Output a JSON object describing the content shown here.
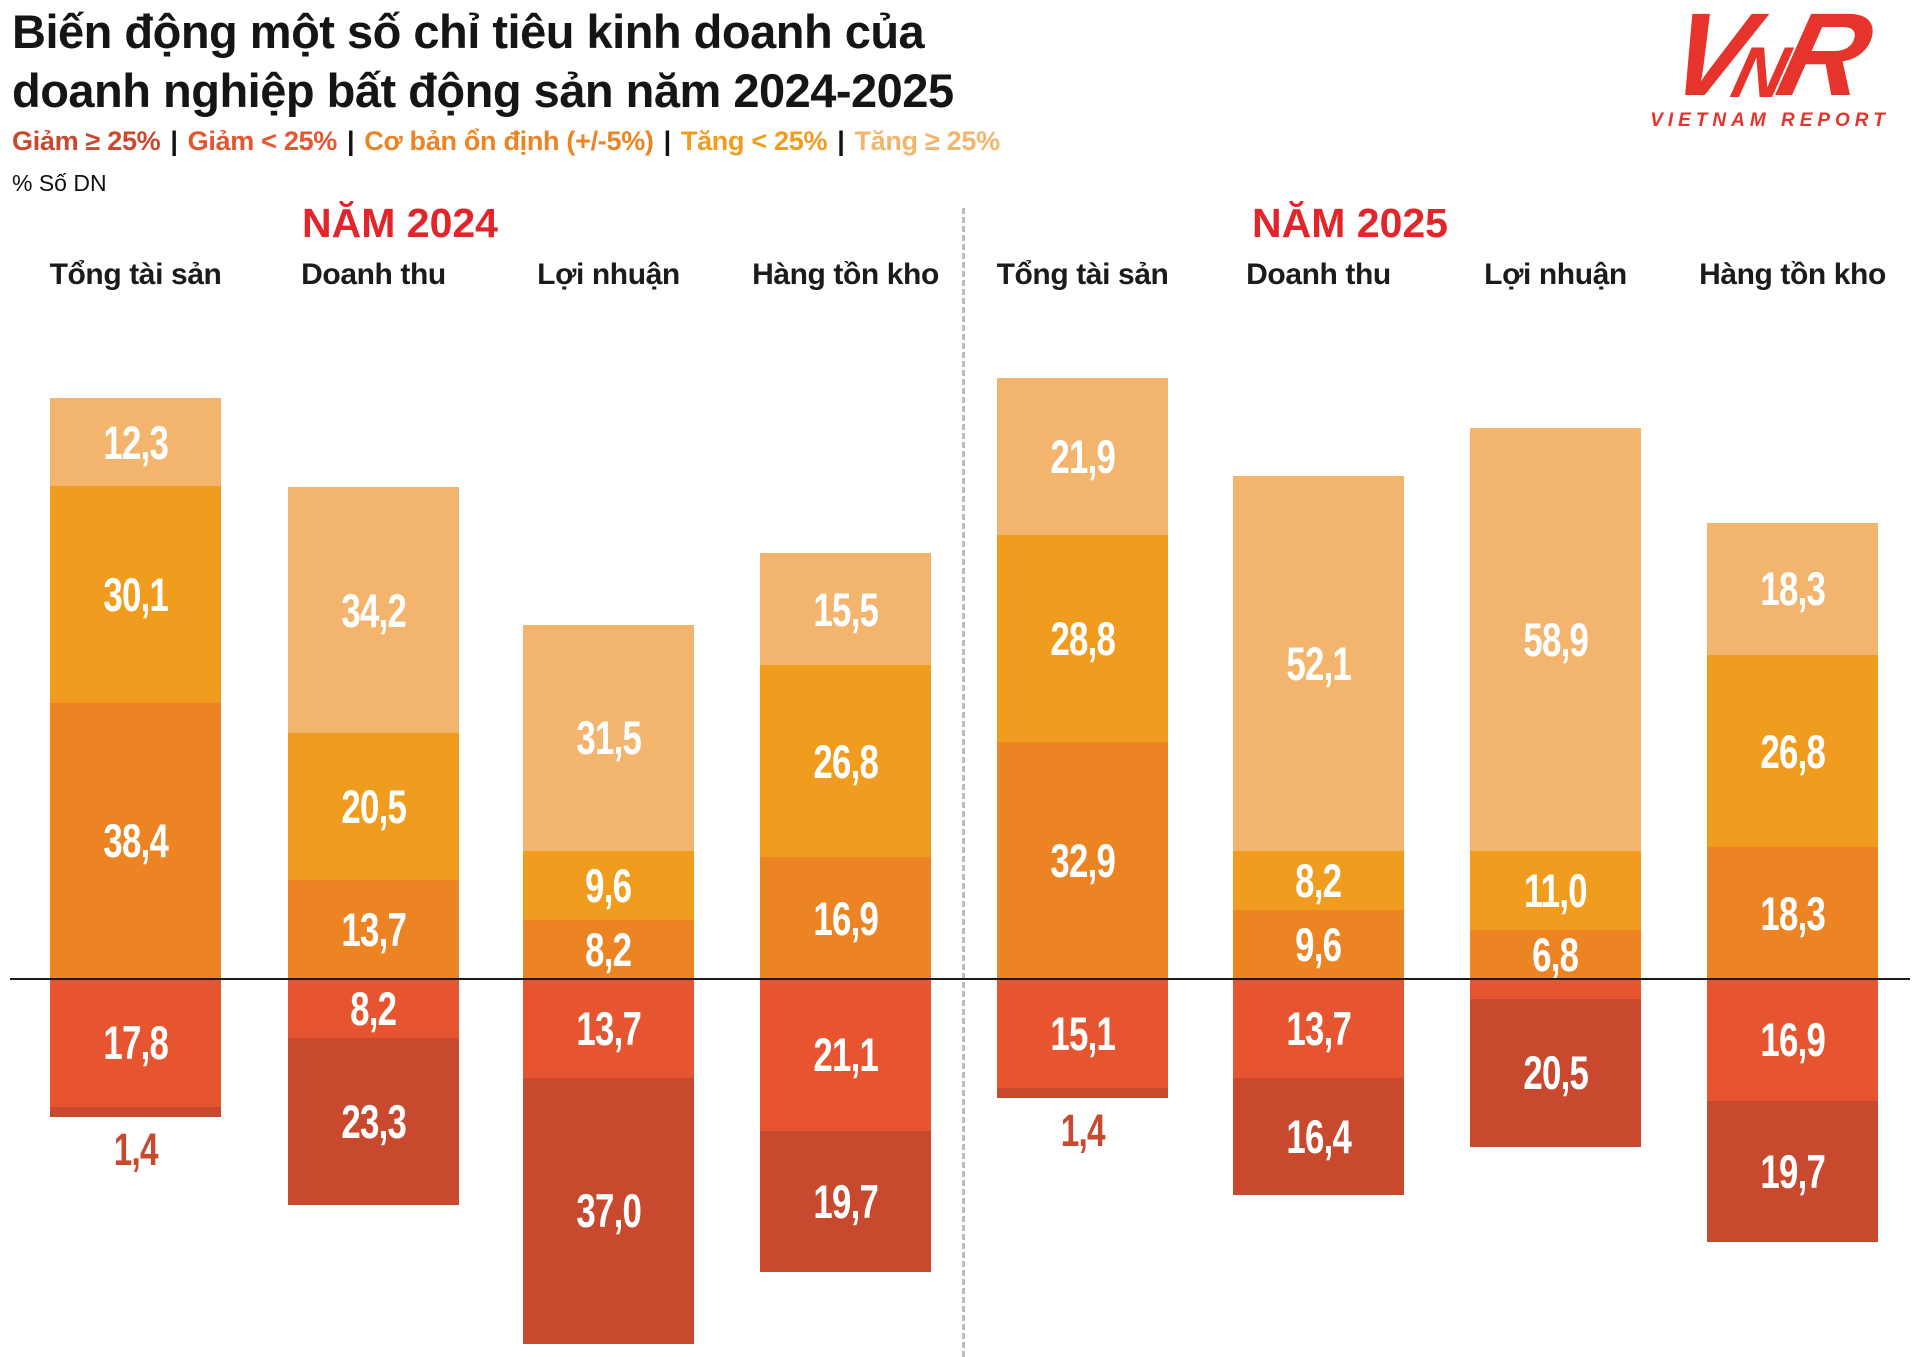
{
  "title": {
    "line1": "Biến động một số chỉ tiêu kinh doanh của",
    "line2": "doanh nghiệp bất động sản năm 2024-2025"
  },
  "unit_label": "% Số DN",
  "logo": {
    "v": "V",
    "n": "N",
    "r": "R",
    "caption": "VIETNAM REPORT",
    "color": "#E6332B"
  },
  "legend": {
    "separator": "|",
    "items": [
      {
        "label": "Giảm ≥ 25%",
        "color": "#C8492E"
      },
      {
        "label": "Giảm < 25%",
        "color": "#E65430"
      },
      {
        "label": "Cơ bản ổn định (+/-5%)",
        "color": "#EC8423"
      },
      {
        "label": "Tăng < 25%",
        "color": "#F09C1E"
      },
      {
        "label": "Tăng ≥ 25%",
        "color": "#F3B56E"
      }
    ]
  },
  "chart_data": {
    "type": "diverging_stacked_bar",
    "unit": "% Số DN",
    "baseline_note": "baseline separates 'Cơ bản ổn định (+/-5%)' (above) from 'Giảm < 25%' (below)",
    "series": [
      {
        "name": "Tăng ≥ 25%",
        "color": "#F3B56E"
      },
      {
        "name": "Tăng < 25%",
        "color": "#F09C1E"
      },
      {
        "name": "Cơ bản ổn định (+/-5%)",
        "color": "#EC8423"
      },
      {
        "name": "Giảm < 25%",
        "color": "#E65430"
      },
      {
        "name": "Giảm ≥ 25%",
        "color": "#C8492E"
      }
    ],
    "groups": [
      {
        "name": "NĂM 2024",
        "columns": [
          {
            "header": "Tổng tài sản",
            "segments": [
              {
                "series": "Tăng ≥ 25%",
                "value": 12.3,
                "label": "12,3"
              },
              {
                "series": "Tăng < 25%",
                "value": 30.1,
                "label": "30,1"
              },
              {
                "series": "Cơ bản ổn định (+/-5%)",
                "value": 38.4,
                "label": "38,4"
              },
              {
                "series": "Giảm < 25%",
                "value": 17.8,
                "label": "17,8"
              },
              {
                "series": "Giảm ≥ 25%",
                "value": 1.4,
                "label": "1,4",
                "label_pos": "below"
              }
            ]
          },
          {
            "header": "Doanh thu",
            "segments": [
              {
                "series": "Tăng ≥ 25%",
                "value": 34.2,
                "label": "34,2"
              },
              {
                "series": "Tăng < 25%",
                "value": 20.5,
                "label": "20,5"
              },
              {
                "series": "Cơ bản ổn định (+/-5%)",
                "value": 13.7,
                "label": "13,7"
              },
              {
                "series": "Giảm < 25%",
                "value": 8.2,
                "label": "8,2"
              },
              {
                "series": "Giảm ≥ 25%",
                "value": 23.3,
                "label": "23,3"
              }
            ]
          },
          {
            "header": "Lợi nhuận",
            "segments": [
              {
                "series": "Tăng ≥ 25%",
                "value": 31.5,
                "label": "31,5"
              },
              {
                "series": "Tăng < 25%",
                "value": 9.6,
                "label": "9,6"
              },
              {
                "series": "Cơ bản ổn định (+/-5%)",
                "value": 8.2,
                "label": "8,2"
              },
              {
                "series": "Giảm < 25%",
                "value": 13.7,
                "label": "13,7"
              },
              {
                "series": "Giảm ≥ 25%",
                "value": 37.0,
                "label": "37,0"
              }
            ]
          },
          {
            "header": "Hàng tồn kho",
            "segments": [
              {
                "series": "Tăng ≥ 25%",
                "value": 15.5,
                "label": "15,5"
              },
              {
                "series": "Tăng < 25%",
                "value": 26.8,
                "label": "26,8"
              },
              {
                "series": "Cơ bản ổn định (+/-5%)",
                "value": 16.9,
                "label": "16,9"
              },
              {
                "series": "Giảm < 25%",
                "value": 21.1,
                "label": "21,1"
              },
              {
                "series": "Giảm ≥ 25%",
                "value": 19.7,
                "label": "19,7"
              }
            ]
          }
        ]
      },
      {
        "name": "NĂM 2025",
        "columns": [
          {
            "header": "Tổng tài sản",
            "segments": [
              {
                "series": "Tăng ≥ 25%",
                "value": 21.9,
                "label": "21,9"
              },
              {
                "series": "Tăng < 25%",
                "value": 28.8,
                "label": "28,8"
              },
              {
                "series": "Cơ bản ổn định (+/-5%)",
                "value": 32.9,
                "label": "32,9"
              },
              {
                "series": "Giảm < 25%",
                "value": 15.1,
                "label": "15,1"
              },
              {
                "series": "Giảm ≥ 25%",
                "value": 1.4,
                "label": "1,4",
                "label_pos": "below"
              }
            ]
          },
          {
            "header": "Doanh thu",
            "segments": [
              {
                "series": "Tăng ≥ 25%",
                "value": 52.1,
                "label": "52,1"
              },
              {
                "series": "Tăng < 25%",
                "value": 8.2,
                "label": "8,2"
              },
              {
                "series": "Cơ bản ổn định (+/-5%)",
                "value": 9.6,
                "label": "9,6"
              },
              {
                "series": "Giảm < 25%",
                "value": 13.7,
                "label": "13,7"
              },
              {
                "series": "Giảm ≥ 25%",
                "value": 16.4,
                "label": "16,4"
              }
            ]
          },
          {
            "header": "Lợi nhuận",
            "segments": [
              {
                "series": "Tăng ≥ 25%",
                "value": 58.9,
                "label": "58,9"
              },
              {
                "series": "Tăng < 25%",
                "value": 11.0,
                "label": "11,0"
              },
              {
                "series": "Cơ bản ổn định (+/-5%)",
                "value": 6.8,
                "label": "6,8"
              },
              {
                "series": "Giảm < 25%",
                "value": 2.8,
                "label": ""
              },
              {
                "series": "Giảm ≥ 25%",
                "value": 20.5,
                "label": "20,5"
              }
            ]
          },
          {
            "header": "Hàng tồn kho",
            "segments": [
              {
                "series": "Tăng ≥ 25%",
                "value": 18.3,
                "label": "18,3"
              },
              {
                "series": "Tăng < 25%",
                "value": 26.8,
                "label": "26,8"
              },
              {
                "series": "Cơ bản ổn định (+/-5%)",
                "value": 18.3,
                "label": "18,3"
              },
              {
                "series": "Giảm < 25%",
                "value": 16.9,
                "label": "16,9"
              },
              {
                "series": "Giảm ≥ 25%",
                "value": 19.7,
                "label": "19,7"
              }
            ]
          }
        ]
      }
    ]
  }
}
